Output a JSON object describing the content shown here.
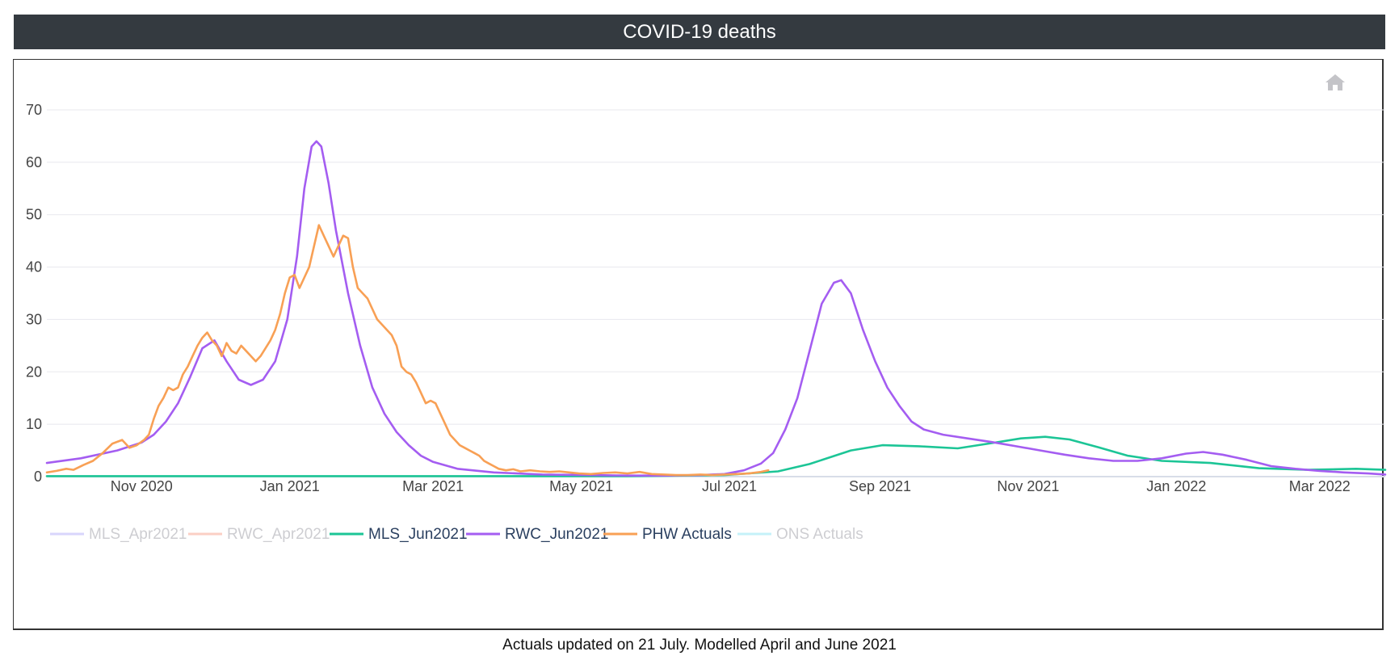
{
  "header": {
    "title": "COVID-19 deaths"
  },
  "toolbar": {
    "home_icon": "home-icon"
  },
  "caption": "Actuals updated on 21 July. Modelled April and June 2021",
  "colors": {
    "header_bg": "#343a40",
    "mls_apr": "#b9b4fb",
    "rwc_apr": "#f8a894",
    "mls_jun": "#1cc596",
    "rwc_jun": "#a45df1",
    "phw": "#f8a055",
    "ons": "#96e6f5",
    "grid": "#e8e8ee",
    "legend_inactive_text": "#a5a5ad",
    "legend_active_text": "#2a3f5f"
  },
  "chart_data": {
    "type": "line",
    "title": "COVID-19 deaths",
    "xlabel": "",
    "ylabel": "",
    "x_range_days": [
      -39,
      512
    ],
    "x_range_labels": [
      "2020-09-23",
      "2022-03-28"
    ],
    "x_origin": "2020-11-01",
    "ylim": [
      0,
      79
    ],
    "y_ticks": [
      0,
      10,
      20,
      30,
      40,
      50,
      60,
      70
    ],
    "x_ticks": [
      {
        "day": 0,
        "label": "Nov 2020"
      },
      {
        "day": 61,
        "label": "Jan 2021"
      },
      {
        "day": 120,
        "label": "Mar 2021"
      },
      {
        "day": 181,
        "label": "May 2021"
      },
      {
        "day": 242,
        "label": "Jul 2021"
      },
      {
        "day": 304,
        "label": "Sep 2021"
      },
      {
        "day": 365,
        "label": "Nov 2021"
      },
      {
        "day": 426,
        "label": "Jan 2022"
      },
      {
        "day": 485,
        "label": "Mar 2022"
      }
    ],
    "legend": [
      {
        "name": "MLS_Apr2021",
        "color_key": "mls_apr",
        "visible": false
      },
      {
        "name": "RWC_Apr2021",
        "color_key": "rwc_apr",
        "visible": false
      },
      {
        "name": "MLS_Jun2021",
        "color_key": "mls_jun",
        "visible": true
      },
      {
        "name": "RWC_Jun2021",
        "color_key": "rwc_jun",
        "visible": true
      },
      {
        "name": "PHW Actuals",
        "color_key": "phw",
        "visible": true
      },
      {
        "name": "ONS Actuals",
        "color_key": "ons",
        "visible": false
      }
    ],
    "series": [
      {
        "name": "MLS_Jun2021",
        "color_key": "mls_jun",
        "points": [
          [
            -39,
            0.1
          ],
          [
            20,
            0.1
          ],
          [
            80,
            0.1
          ],
          [
            140,
            0.1
          ],
          [
            200,
            0.1
          ],
          [
            240,
            0.3
          ],
          [
            262,
            1.0
          ],
          [
            275,
            2.4
          ],
          [
            292,
            5.0
          ],
          [
            305,
            6.0
          ],
          [
            320,
            5.8
          ],
          [
            336,
            5.4
          ],
          [
            350,
            6.4
          ],
          [
            362,
            7.3
          ],
          [
            372,
            7.6
          ],
          [
            382,
            7.1
          ],
          [
            394,
            5.6
          ],
          [
            406,
            4.0
          ],
          [
            420,
            3.0
          ],
          [
            440,
            2.6
          ],
          [
            460,
            1.6
          ],
          [
            480,
            1.3
          ],
          [
            500,
            1.5
          ],
          [
            512,
            1.3
          ]
        ]
      },
      {
        "name": "RWC_Jun2021",
        "color_key": "rwc_jun",
        "points": [
          [
            -39,
            2.6
          ],
          [
            -25,
            3.5
          ],
          [
            -10,
            5.0
          ],
          [
            0,
            6.5
          ],
          [
            5,
            8.0
          ],
          [
            10,
            10.5
          ],
          [
            15,
            14.0
          ],
          [
            20,
            19.0
          ],
          [
            25,
            24.5
          ],
          [
            30,
            26.0
          ],
          [
            35,
            22.0
          ],
          [
            40,
            18.5
          ],
          [
            45,
            17.5
          ],
          [
            50,
            18.5
          ],
          [
            55,
            22.0
          ],
          [
            60,
            30.0
          ],
          [
            64,
            42.0
          ],
          [
            67,
            55.0
          ],
          [
            70,
            63.0
          ],
          [
            72,
            64.0
          ],
          [
            74,
            63.0
          ],
          [
            77,
            56.0
          ],
          [
            80,
            47.0
          ],
          [
            85,
            35.0
          ],
          [
            90,
            25.0
          ],
          [
            95,
            17.0
          ],
          [
            100,
            12.0
          ],
          [
            105,
            8.5
          ],
          [
            110,
            6.0
          ],
          [
            115,
            4.0
          ],
          [
            120,
            2.8
          ],
          [
            130,
            1.5
          ],
          [
            145,
            0.8
          ],
          [
            165,
            0.4
          ],
          [
            185,
            0.3
          ],
          [
            200,
            0.2
          ],
          [
            215,
            0.2
          ],
          [
            230,
            0.3
          ],
          [
            240,
            0.5
          ],
          [
            248,
            1.2
          ],
          [
            255,
            2.5
          ],
          [
            260,
            4.5
          ],
          [
            265,
            9.0
          ],
          [
            270,
            15.0
          ],
          [
            275,
            24.0
          ],
          [
            280,
            33.0
          ],
          [
            285,
            37.0
          ],
          [
            288,
            37.5
          ],
          [
            292,
            35.0
          ],
          [
            297,
            28.0
          ],
          [
            302,
            22.0
          ],
          [
            307,
            17.0
          ],
          [
            312,
            13.5
          ],
          [
            317,
            10.5
          ],
          [
            322,
            9.0
          ],
          [
            330,
            8.0
          ],
          [
            340,
            7.3
          ],
          [
            350,
            6.6
          ],
          [
            360,
            5.8
          ],
          [
            370,
            5.0
          ],
          [
            380,
            4.2
          ],
          [
            390,
            3.5
          ],
          [
            400,
            3.0
          ],
          [
            410,
            3.0
          ],
          [
            420,
            3.5
          ],
          [
            430,
            4.4
          ],
          [
            437,
            4.7
          ],
          [
            445,
            4.2
          ],
          [
            455,
            3.2
          ],
          [
            465,
            2.0
          ],
          [
            475,
            1.5
          ],
          [
            485,
            1.1
          ],
          [
            495,
            0.8
          ],
          [
            505,
            0.6
          ],
          [
            512,
            0.4
          ]
        ]
      },
      {
        "name": "PHW Actuals",
        "color_key": "phw",
        "points": [
          [
            -39,
            0.8
          ],
          [
            -35,
            1.1
          ],
          [
            -31,
            1.5
          ],
          [
            -28,
            1.3
          ],
          [
            -24,
            2.2
          ],
          [
            -20,
            3.0
          ],
          [
            -16,
            4.5
          ],
          [
            -12,
            6.3
          ],
          [
            -8,
            7.0
          ],
          [
            -5,
            5.5
          ],
          [
            -2,
            6.0
          ],
          [
            1,
            7.0
          ],
          [
            3,
            8.0
          ],
          [
            5,
            11.0
          ],
          [
            7,
            13.5
          ],
          [
            9,
            15.0
          ],
          [
            11,
            17.0
          ],
          [
            13,
            16.5
          ],
          [
            15,
            17.0
          ],
          [
            17,
            19.5
          ],
          [
            19,
            21.0
          ],
          [
            21,
            23.0
          ],
          [
            23,
            25.0
          ],
          [
            25,
            26.5
          ],
          [
            27,
            27.5
          ],
          [
            29,
            26.0
          ],
          [
            31,
            25.0
          ],
          [
            33,
            23.0
          ],
          [
            35,
            25.5
          ],
          [
            37,
            24.0
          ],
          [
            39,
            23.5
          ],
          [
            41,
            25.0
          ],
          [
            43,
            24.0
          ],
          [
            45,
            23.0
          ],
          [
            47,
            22.0
          ],
          [
            49,
            23.0
          ],
          [
            51,
            24.5
          ],
          [
            53,
            26.0
          ],
          [
            55,
            28.0
          ],
          [
            57,
            31.0
          ],
          [
            59,
            35.0
          ],
          [
            61,
            38.0
          ],
          [
            63,
            38.5
          ],
          [
            65,
            36.0
          ],
          [
            67,
            38.0
          ],
          [
            69,
            40.0
          ],
          [
            71,
            44.0
          ],
          [
            73,
            48.0
          ],
          [
            75,
            46.0
          ],
          [
            77,
            44.0
          ],
          [
            79,
            42.0
          ],
          [
            81,
            44.0
          ],
          [
            83,
            46.0
          ],
          [
            85,
            45.5
          ],
          [
            87,
            40.0
          ],
          [
            89,
            36.0
          ],
          [
            91,
            35.0
          ],
          [
            93,
            34.0
          ],
          [
            95,
            32.0
          ],
          [
            97,
            30.0
          ],
          [
            99,
            29.0
          ],
          [
            101,
            28.0
          ],
          [
            103,
            27.0
          ],
          [
            105,
            25.0
          ],
          [
            107,
            21.0
          ],
          [
            109,
            20.0
          ],
          [
            111,
            19.5
          ],
          [
            113,
            18.0
          ],
          [
            115,
            16.0
          ],
          [
            117,
            14.0
          ],
          [
            119,
            14.5
          ],
          [
            121,
            14.0
          ],
          [
            123,
            12.0
          ],
          [
            125,
            10.0
          ],
          [
            127,
            8.0
          ],
          [
            129,
            7.0
          ],
          [
            131,
            6.0
          ],
          [
            133,
            5.5
          ],
          [
            135,
            5.0
          ],
          [
            137,
            4.5
          ],
          [
            139,
            4.0
          ],
          [
            141,
            3.0
          ],
          [
            143,
            2.5
          ],
          [
            145,
            2.0
          ],
          [
            147,
            1.5
          ],
          [
            150,
            1.2
          ],
          [
            153,
            1.4
          ],
          [
            156,
            1.0
          ],
          [
            160,
            1.2
          ],
          [
            164,
            1.0
          ],
          [
            168,
            0.9
          ],
          [
            172,
            1.0
          ],
          [
            176,
            0.8
          ],
          [
            180,
            0.6
          ],
          [
            185,
            0.5
          ],
          [
            190,
            0.7
          ],
          [
            195,
            0.8
          ],
          [
            200,
            0.6
          ],
          [
            205,
            0.9
          ],
          [
            210,
            0.5
          ],
          [
            215,
            0.4
          ],
          [
            220,
            0.3
          ],
          [
            225,
            0.3
          ],
          [
            230,
            0.4
          ],
          [
            235,
            0.3
          ],
          [
            240,
            0.4
          ],
          [
            245,
            0.5
          ],
          [
            250,
            0.6
          ],
          [
            255,
            0.9
          ],
          [
            258,
            1.2
          ]
        ]
      }
    ]
  }
}
